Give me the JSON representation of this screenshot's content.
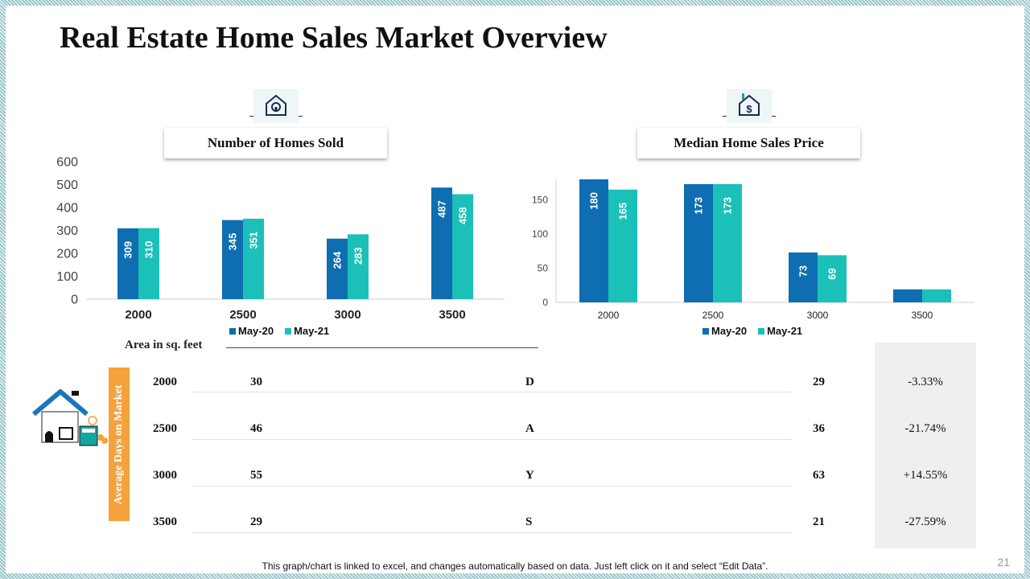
{
  "title": "Real Estate Home Sales Market Overview",
  "chart_data": [
    {
      "type": "bar",
      "title": "Number of Homes Sold",
      "categories": [
        "2000",
        "2500",
        "3000",
        "3500"
      ],
      "series": [
        {
          "name": "May-20",
          "values": [
            309,
            345,
            264,
            487
          ],
          "color": "#0e6eb1"
        },
        {
          "name": "May-21",
          "values": [
            310,
            351,
            283,
            458
          ],
          "color": "#1bc0b8"
        }
      ],
      "yticks": [
        "0",
        "100",
        "200",
        "300",
        "400",
        "500",
        "600"
      ],
      "ylim": [
        0,
        600
      ],
      "legend": "bottom"
    },
    {
      "type": "bar",
      "title": "Median Home Sales Price",
      "categories": [
        "2000",
        "2500",
        "3000",
        "3500"
      ],
      "series": [
        {
          "name": "May-20",
          "values": [
            180,
            173,
            73,
            19
          ],
          "color": "#0e6eb1"
        },
        {
          "name": "May-21",
          "values": [
            165,
            173,
            69,
            19
          ],
          "color": "#1bc0b8"
        }
      ],
      "yticks": [
        "0",
        "50",
        "100",
        "150"
      ],
      "ylim": [
        0,
        180
      ],
      "legend": "bottom"
    }
  ],
  "table": {
    "area_label": "Area in sq. feet",
    "days_label": "Average Days on Market",
    "rows": [
      {
        "area": "2000",
        "may20": "30",
        "letter": "D",
        "may21": "29",
        "change": "-3.33%"
      },
      {
        "area": "2500",
        "may20": "46",
        "letter": "A",
        "may21": "36",
        "change": "-21.74%"
      },
      {
        "area": "3000",
        "may20": "55",
        "letter": "Y",
        "may21": "63",
        "change": "+14.55%"
      },
      {
        "area": "3500",
        "may20": "29",
        "letter": "S",
        "may21": "21",
        "change": "-27.59%"
      }
    ]
  },
  "icons": {
    "chart1": "house-keyhole-icon",
    "chart2": "house-dollar-icon",
    "table": "house-calculator-icon"
  },
  "footnote": "This graph/chart is linked to excel, and changes automatically based on data. Just left click on it and select “Edit Data”.",
  "page_number": "21"
}
